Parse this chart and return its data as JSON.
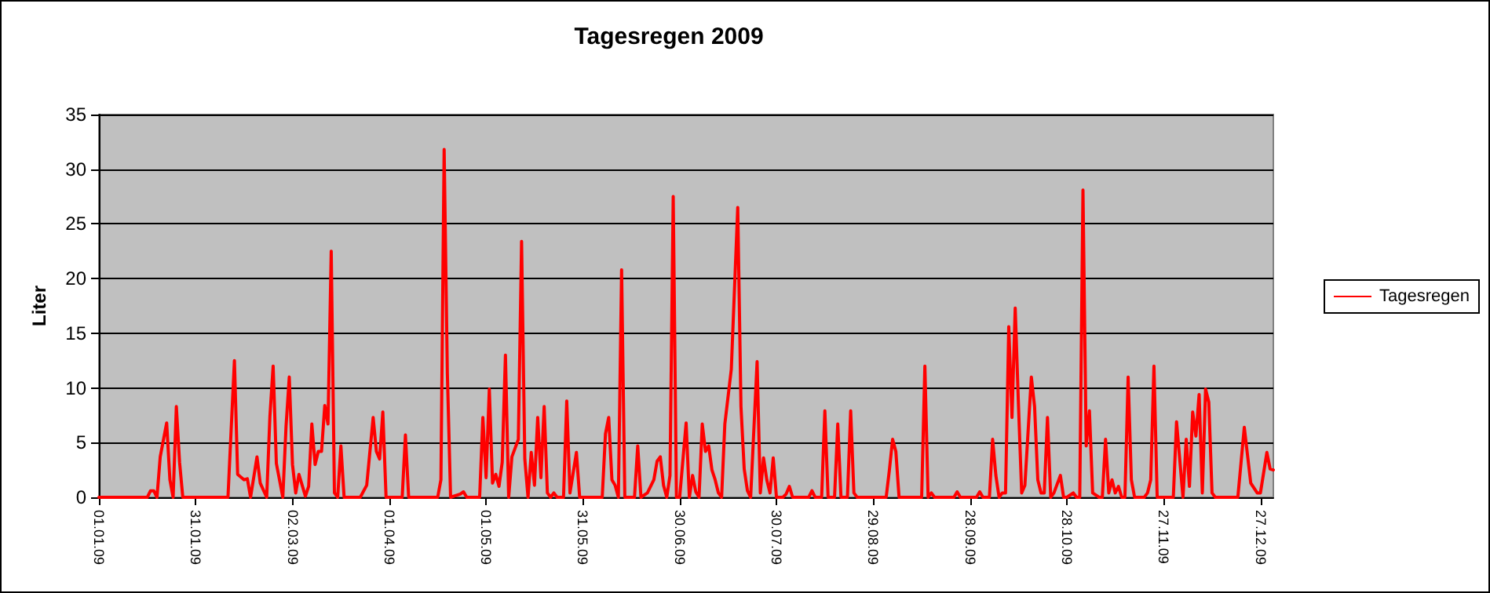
{
  "chart_data": {
    "type": "line",
    "title": "Tagesregen 2009",
    "ylabel": "Liter",
    "ylim": [
      0,
      35
    ],
    "yticks": [
      0,
      5,
      10,
      15,
      20,
      25,
      30,
      35
    ],
    "xlim": [
      "2009-01-01",
      "2009-12-31"
    ],
    "xticks": [
      {
        "value": "2009-01-01",
        "label": "01.01.09"
      },
      {
        "value": "2009-01-31",
        "label": "31.01.09"
      },
      {
        "value": "2009-03-02",
        "label": "02.03.09"
      },
      {
        "value": "2009-04-01",
        "label": "01.04.09"
      },
      {
        "value": "2009-05-01",
        "label": "01.05.09"
      },
      {
        "value": "2009-05-31",
        "label": "31.05.09"
      },
      {
        "value": "2009-06-30",
        "label": "30.06.09"
      },
      {
        "value": "2009-07-30",
        "label": "30.07.09"
      },
      {
        "value": "2009-08-29",
        "label": "29.08.09"
      },
      {
        "value": "2009-09-28",
        "label": "28.09.09"
      },
      {
        "value": "2009-10-28",
        "label": "28.10.09"
      },
      {
        "value": "2009-11-27",
        "label": "27.11.09"
      },
      {
        "value": "2009-12-27",
        "label": "27.12.09"
      }
    ],
    "grid": "y",
    "legend": "right",
    "marker": "none",
    "line_style": "solid",
    "series": [
      {
        "name": "Tagesregen",
        "color": "#ff0000",
        "x": [
          "2009-01-01",
          "2009-01-16",
          "2009-01-17",
          "2009-01-18",
          "2009-01-19",
          "2009-01-20",
          "2009-01-22",
          "2009-01-23",
          "2009-01-24",
          "2009-01-25",
          "2009-01-26",
          "2009-01-27",
          "2009-02-10",
          "2009-02-12",
          "2009-02-13",
          "2009-02-15",
          "2009-02-16",
          "2009-02-17",
          "2009-02-19",
          "2009-02-20",
          "2009-02-22",
          "2009-02-23",
          "2009-02-24",
          "2009-02-25",
          "2009-02-27",
          "2009-02-28",
          "2009-03-01",
          "2009-03-02",
          "2009-03-03",
          "2009-03-04",
          "2009-03-06",
          "2009-03-07",
          "2009-03-08",
          "2009-03-09",
          "2009-03-10",
          "2009-03-11",
          "2009-03-12",
          "2009-03-13",
          "2009-03-14",
          "2009-03-15",
          "2009-03-16",
          "2009-03-17",
          "2009-03-18",
          "2009-03-23",
          "2009-03-25",
          "2009-03-27",
          "2009-03-28",
          "2009-03-29",
          "2009-03-30",
          "2009-03-31",
          "2009-04-05",
          "2009-04-06",
          "2009-04-07",
          "2009-04-16",
          "2009-04-17",
          "2009-04-18",
          "2009-04-19",
          "2009-04-20",
          "2009-04-23",
          "2009-04-24",
          "2009-04-25",
          "2009-04-29",
          "2009-04-30",
          "2009-05-01",
          "2009-05-02",
          "2009-05-03",
          "2009-05-04",
          "2009-05-05",
          "2009-05-06",
          "2009-05-07",
          "2009-05-08",
          "2009-05-09",
          "2009-05-11",
          "2009-05-12",
          "2009-05-13",
          "2009-05-14",
          "2009-05-15",
          "2009-05-16",
          "2009-05-17",
          "2009-05-18",
          "2009-05-19",
          "2009-05-20",
          "2009-05-21",
          "2009-05-22",
          "2009-05-23",
          "2009-05-25",
          "2009-05-26",
          "2009-05-27",
          "2009-05-29",
          "2009-05-30",
          "2009-06-06",
          "2009-06-07",
          "2009-06-08",
          "2009-06-09",
          "2009-06-10",
          "2009-06-11",
          "2009-06-12",
          "2009-06-13",
          "2009-06-16",
          "2009-06-17",
          "2009-06-18",
          "2009-06-20",
          "2009-06-22",
          "2009-06-23",
          "2009-06-24",
          "2009-06-25",
          "2009-06-26",
          "2009-06-27",
          "2009-06-28",
          "2009-06-29",
          "2009-06-30",
          "2009-07-02",
          "2009-07-03",
          "2009-07-04",
          "2009-07-05",
          "2009-07-06",
          "2009-07-07",
          "2009-07-08",
          "2009-07-09",
          "2009-07-10",
          "2009-07-11",
          "2009-07-12",
          "2009-07-13",
          "2009-07-14",
          "2009-07-16",
          "2009-07-18",
          "2009-07-19",
          "2009-07-20",
          "2009-07-21",
          "2009-07-22",
          "2009-07-24",
          "2009-07-25",
          "2009-07-26",
          "2009-07-27",
          "2009-07-28",
          "2009-07-29",
          "2009-07-30",
          "2009-08-01",
          "2009-08-02",
          "2009-08-03",
          "2009-08-04",
          "2009-08-09",
          "2009-08-10",
          "2009-08-11",
          "2009-08-13",
          "2009-08-14",
          "2009-08-15",
          "2009-08-17",
          "2009-08-18",
          "2009-08-19",
          "2009-08-21",
          "2009-08-22",
          "2009-08-23",
          "2009-08-24",
          "2009-09-02",
          "2009-09-03",
          "2009-09-04",
          "2009-09-05",
          "2009-09-06",
          "2009-09-13",
          "2009-09-14",
          "2009-09-15",
          "2009-09-16",
          "2009-09-17",
          "2009-09-23",
          "2009-09-24",
          "2009-09-25",
          "2009-09-30",
          "2009-10-01",
          "2009-10-02",
          "2009-10-04",
          "2009-10-05",
          "2009-10-06",
          "2009-10-07",
          "2009-10-08",
          "2009-10-09",
          "2009-10-10",
          "2009-10-11",
          "2009-10-12",
          "2009-10-13",
          "2009-10-14",
          "2009-10-15",
          "2009-10-17",
          "2009-10-18",
          "2009-10-19",
          "2009-10-20",
          "2009-10-21",
          "2009-10-22",
          "2009-10-23",
          "2009-10-24",
          "2009-10-26",
          "2009-10-27",
          "2009-10-28",
          "2009-10-30",
          "2009-10-31",
          "2009-11-01",
          "2009-11-02",
          "2009-11-03",
          "2009-11-04",
          "2009-11-05",
          "2009-11-07",
          "2009-11-08",
          "2009-11-09",
          "2009-11-10",
          "2009-11-11",
          "2009-11-12",
          "2009-11-13",
          "2009-11-14",
          "2009-11-15",
          "2009-11-16",
          "2009-11-17",
          "2009-11-18",
          "2009-11-21",
          "2009-11-22",
          "2009-11-23",
          "2009-11-24",
          "2009-11-25",
          "2009-11-30",
          "2009-12-01",
          "2009-12-03",
          "2009-12-04",
          "2009-12-05",
          "2009-12-06",
          "2009-12-07",
          "2009-12-08",
          "2009-12-09",
          "2009-12-10",
          "2009-12-11",
          "2009-12-12",
          "2009-12-13",
          "2009-12-20",
          "2009-12-22",
          "2009-12-24",
          "2009-12-26",
          "2009-12-27",
          "2009-12-29",
          "2009-12-30",
          "2009-12-31"
        ],
        "values": [
          0,
          0,
          0.6,
          0.6,
          0,
          3.7,
          6.8,
          1.6,
          0,
          8.3,
          3.2,
          0,
          0,
          12.5,
          2.1,
          1.6,
          1.7,
          0,
          3.7,
          1.3,
          0,
          7.4,
          12,
          3.1,
          0,
          6.5,
          11,
          3,
          0.4,
          2.1,
          0.1,
          1,
          6.7,
          3,
          4.2,
          4.2,
          8.4,
          6.7,
          22.5,
          0.4,
          0,
          4.7,
          0,
          0,
          1.1,
          7.3,
          4.2,
          3.5,
          7.8,
          0,
          0,
          5.7,
          0,
          0,
          1.6,
          31.8,
          11.3,
          0,
          0.3,
          0.5,
          0,
          0,
          7.3,
          1.8,
          9.9,
          1.3,
          2.1,
          1,
          3.2,
          13,
          0,
          3.7,
          5.3,
          23.4,
          3.5,
          0,
          4.1,
          1.1,
          7.3,
          1.8,
          8.3,
          0.4,
          0,
          0.4,
          0,
          0,
          8.8,
          0.4,
          4.1,
          0,
          0,
          5.8,
          7.3,
          1.6,
          1.1,
          0,
          20.8,
          0,
          0,
          4.7,
          0,
          0.4,
          1.6,
          3.3,
          3.7,
          1.1,
          0,
          2,
          27.5,
          0,
          0,
          6.8,
          0,
          2,
          0.5,
          0,
          6.7,
          4.2,
          4.7,
          2.5,
          1.6,
          0.4,
          0,
          6.7,
          11.7,
          26.5,
          8.3,
          2.6,
          0.6,
          0,
          12.4,
          0.4,
          3.6,
          1.6,
          0.4,
          3.6,
          0,
          0,
          0.3,
          1,
          0,
          0,
          0.6,
          0,
          0,
          7.9,
          0,
          0,
          6.7,
          0,
          0,
          7.9,
          0.4,
          0,
          0,
          2.5,
          5.3,
          4.2,
          0,
          0,
          12,
          0,
          0.4,
          0,
          0,
          0.5,
          0,
          0,
          0.5,
          0,
          0,
          5.3,
          2,
          0,
          0.4,
          0.4,
          15.6,
          7.3,
          17.3,
          8.5,
          0.4,
          1.1,
          11,
          8.3,
          1.6,
          0.4,
          0.4,
          7.3,
          0,
          0.4,
          2,
          0,
          0,
          0.4,
          0,
          0,
          28.1,
          4.7,
          7.9,
          0.4,
          0,
          0,
          5.3,
          0.4,
          1.6,
          0.4,
          1,
          0,
          0,
          11,
          1.6,
          0,
          0,
          0.4,
          1.6,
          12,
          0,
          0,
          6.9,
          0,
          5.3,
          1,
          7.8,
          5.6,
          9.4,
          0.4,
          9.9,
          8.7,
          0.4,
          0,
          0,
          6.4,
          1.3,
          0.4,
          0.4,
          4.1,
          2.6,
          2.5
        ]
      }
    ]
  }
}
